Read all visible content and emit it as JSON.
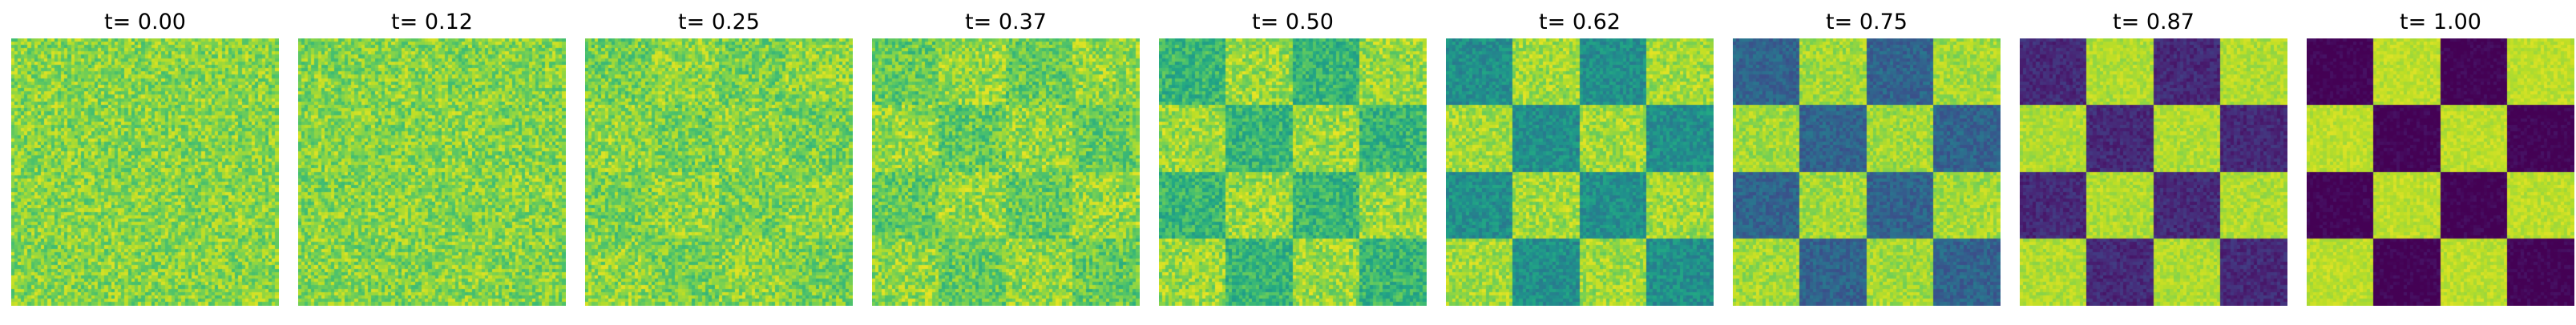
{
  "chart_data": {
    "type": "heatmap",
    "colormap": "viridis",
    "colorbar": false,
    "axes_visible": false,
    "grid": false,
    "grid_resolution": 80,
    "block_pattern": "4x4 checkerboard",
    "panels": [
      {
        "title": "t= 0.00",
        "t": 0.0,
        "dark_block_value": 0.82,
        "light_block_value": 0.82,
        "noise": 0.13
      },
      {
        "title": "t= 0.12",
        "t": 0.12,
        "dark_block_value": 0.81,
        "light_block_value": 0.82,
        "noise": 0.13
      },
      {
        "title": "t= 0.25",
        "t": 0.25,
        "dark_block_value": 0.79,
        "light_block_value": 0.83,
        "noise": 0.13
      },
      {
        "title": "t= 0.37",
        "t": 0.37,
        "dark_block_value": 0.76,
        "light_block_value": 0.84,
        "noise": 0.13
      },
      {
        "title": "t= 0.50",
        "t": 0.5,
        "dark_block_value": 0.66,
        "light_block_value": 0.85,
        "noise": 0.12
      },
      {
        "title": "t= 0.62",
        "t": 0.62,
        "dark_block_value": 0.5,
        "light_block_value": 0.86,
        "noise": 0.1
      },
      {
        "title": "t= 0.75",
        "t": 0.75,
        "dark_block_value": 0.32,
        "light_block_value": 0.86,
        "noise": 0.08
      },
      {
        "title": "t= 0.87",
        "t": 0.87,
        "dark_block_value": 0.12,
        "light_block_value": 0.88,
        "noise": 0.06
      },
      {
        "title": "t= 1.00",
        "t": 1.0,
        "dark_block_value": 0.0,
        "light_block_value": 0.9,
        "noise": 0.05
      }
    ]
  }
}
